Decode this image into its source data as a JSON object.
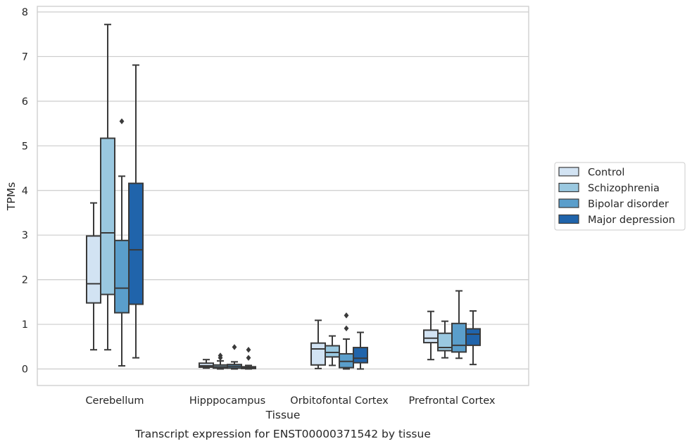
{
  "chart_data": {
    "type": "box",
    "caption": "Transcript expression for ENST00000371542 by tissue",
    "xlabel": "Tissue",
    "ylabel": "TPMs",
    "ylim": [
      -0.37,
      8.1
    ],
    "yticks": [
      "0",
      "1",
      "2",
      "3",
      "4",
      "5",
      "6",
      "7",
      "8"
    ],
    "grid": "horizontal",
    "legend_position": "right",
    "categories": [
      "Cerebellum",
      "Hipppocampus",
      "Orbitofontal Cortex",
      "Prefrontal Cortex"
    ],
    "series": [
      {
        "name": "Control",
        "color": "#d2e3f3",
        "boxes": [
          {
            "whislo": 0.43,
            "q1": 1.48,
            "med": 1.91,
            "q3": 2.98,
            "whishi": 3.72,
            "fliers": []
          },
          {
            "whislo": 0.02,
            "q1": 0.04,
            "med": 0.07,
            "q3": 0.13,
            "whishi": 0.21,
            "fliers": []
          },
          {
            "whislo": 0.01,
            "q1": 0.09,
            "med": 0.45,
            "q3": 0.58,
            "whishi": 1.09,
            "fliers": []
          },
          {
            "whislo": 0.21,
            "q1": 0.59,
            "med": 0.69,
            "q3": 0.87,
            "whishi": 1.29,
            "fliers": []
          }
        ]
      },
      {
        "name": "Schizophrenia",
        "color": "#9ac8e0",
        "boxes": [
          {
            "whislo": 0.43,
            "q1": 1.67,
            "med": 3.05,
            "q3": 5.17,
            "whishi": 7.72,
            "fliers": []
          },
          {
            "whislo": 0.0,
            "q1": 0.02,
            "med": 0.05,
            "q3": 0.09,
            "whishi": 0.18,
            "fliers": [
              0.25,
              0.3
            ]
          },
          {
            "whislo": 0.08,
            "q1": 0.27,
            "med": 0.37,
            "q3": 0.52,
            "whishi": 0.74,
            "fliers": []
          },
          {
            "whislo": 0.25,
            "q1": 0.41,
            "med": 0.48,
            "q3": 0.8,
            "whishi": 1.07,
            "fliers": []
          }
        ]
      },
      {
        "name": "Bipolar disorder",
        "color": "#5a9ecb",
        "boxes": [
          {
            "whislo": 0.07,
            "q1": 1.26,
            "med": 1.81,
            "q3": 2.88,
            "whishi": 4.32,
            "fliers": [
              5.55
            ]
          },
          {
            "whislo": 0.0,
            "q1": 0.02,
            "med": 0.06,
            "q3": 0.1,
            "whishi": 0.16,
            "fliers": [
              0.49
            ]
          },
          {
            "whislo": 0.0,
            "q1": 0.03,
            "med": 0.17,
            "q3": 0.34,
            "whishi": 0.67,
            "fliers": [
              0.91,
              1.2
            ]
          },
          {
            "whislo": 0.24,
            "q1": 0.38,
            "med": 0.53,
            "q3": 1.02,
            "whishi": 1.75,
            "fliers": []
          }
        ]
      },
      {
        "name": "Major depression",
        "color": "#2064ab",
        "boxes": [
          {
            "whislo": 0.25,
            "q1": 1.45,
            "med": 2.67,
            "q3": 4.16,
            "whishi": 6.81,
            "fliers": []
          },
          {
            "whislo": 0.0,
            "q1": 0.01,
            "med": 0.03,
            "q3": 0.05,
            "whishi": 0.08,
            "fliers": [
              0.25,
              0.43
            ]
          },
          {
            "whislo": 0.0,
            "q1": 0.14,
            "med": 0.24,
            "q3": 0.48,
            "whishi": 0.82,
            "fliers": []
          },
          {
            "whislo": 0.1,
            "q1": 0.53,
            "med": 0.78,
            "q3": 0.9,
            "whishi": 1.3,
            "fliers": []
          }
        ]
      }
    ]
  }
}
